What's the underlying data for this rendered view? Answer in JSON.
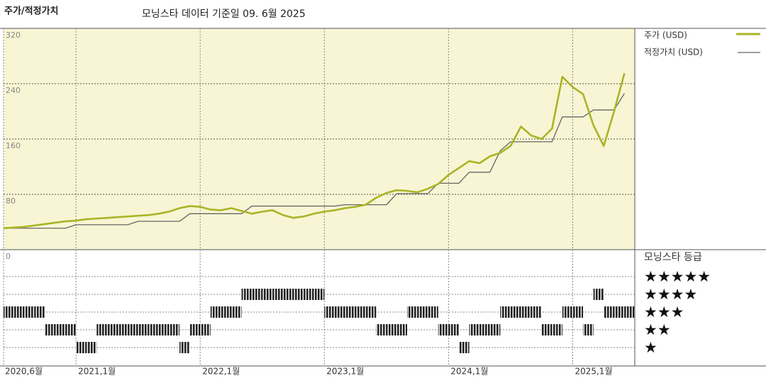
{
  "chart_data": {
    "type": "line",
    "title": "주가/적정가치",
    "subtitle": "모닝스타 데이터 기준일 09. 6월 2025",
    "x": [
      "2020-06",
      "2020-07",
      "2020-08",
      "2020-09",
      "2020-10",
      "2020-11",
      "2020-12",
      "2021-01",
      "2021-02",
      "2021-03",
      "2021-04",
      "2021-05",
      "2021-06",
      "2021-07",
      "2021-08",
      "2021-09",
      "2021-10",
      "2021-11",
      "2021-12",
      "2022-01",
      "2022-02",
      "2022-03",
      "2022-04",
      "2022-05",
      "2022-06",
      "2022-07",
      "2022-08",
      "2022-09",
      "2022-10",
      "2022-11",
      "2022-12",
      "2023-01",
      "2023-02",
      "2023-03",
      "2023-04",
      "2023-05",
      "2023-06",
      "2023-07",
      "2023-08",
      "2023-09",
      "2023-10",
      "2023-11",
      "2023-12",
      "2024-01",
      "2024-02",
      "2024-03",
      "2024-04",
      "2024-05",
      "2024-06",
      "2024-07",
      "2024-08",
      "2024-09",
      "2024-10",
      "2024-11",
      "2024-12",
      "2025-01",
      "2025-02",
      "2025-03",
      "2025-04",
      "2025-05",
      "2025-06"
    ],
    "series": [
      {
        "name": "주가 (USD)",
        "color": "#a9b426",
        "values": [
          31,
          32,
          33,
          35,
          37,
          39,
          41,
          42,
          44,
          45,
          46,
          47,
          48,
          49,
          50,
          52,
          55,
          60,
          63,
          62,
          58,
          57,
          60,
          56,
          52,
          55,
          57,
          50,
          46,
          48,
          52,
          55,
          57,
          60,
          62,
          65,
          75,
          82,
          86,
          85,
          83,
          88,
          95,
          108,
          118,
          128,
          125,
          135,
          140,
          150,
          178,
          165,
          160,
          175,
          250,
          235,
          225,
          180,
          150,
          200,
          255
        ]
      },
      {
        "name": "적정가치 (USD)",
        "color": "#666666",
        "values": [
          31,
          31,
          31,
          31,
          31,
          31,
          31,
          36,
          36,
          36,
          36,
          36,
          36,
          41,
          41,
          41,
          41,
          41,
          52,
          52,
          52,
          52,
          52,
          52,
          63,
          63,
          63,
          63,
          63,
          63,
          63,
          63,
          63,
          65,
          65,
          65,
          65,
          65,
          81,
          81,
          81,
          81,
          96,
          96,
          96,
          112,
          112,
          112,
          143,
          156,
          156,
          156,
          156,
          156,
          192,
          192,
          192,
          202,
          202,
          202,
          226
        ]
      }
    ],
    "xlim": [
      "2020-06",
      "2025-07"
    ],
    "xticks": [
      {
        "value": "2020-06",
        "label": "2020,6월"
      },
      {
        "value": "2021-01",
        "label": "2021,1월"
      },
      {
        "value": "2022-01",
        "label": "2022,1월"
      },
      {
        "value": "2023-01",
        "label": "2023,1월"
      },
      {
        "value": "2024-01",
        "label": "2024,1월"
      },
      {
        "value": "2025-01",
        "label": "2025,1월"
      }
    ],
    "ylim": [
      0,
      320
    ],
    "yticks": [
      0,
      80,
      160,
      240,
      320
    ],
    "grid": true,
    "rating": {
      "name": "모닝스타 등급",
      "levels": [
        "★★★★★",
        "★★★★",
        "★★★",
        "★★",
        "★"
      ],
      "scale": [
        5,
        4,
        3,
        2,
        1
      ],
      "values": [
        3,
        3,
        3,
        3,
        2,
        2,
        2,
        1,
        1,
        2,
        2,
        2,
        2,
        2,
        2,
        2,
        2,
        1,
        2,
        2,
        3,
        3,
        3,
        4,
        4,
        4,
        4,
        4,
        4,
        4,
        4,
        3,
        3,
        3,
        3,
        3,
        2,
        2,
        2,
        3,
        3,
        3,
        2,
        2,
        1,
        2,
        2,
        2,
        3,
        3,
        3,
        3,
        2,
        2,
        3,
        3,
        2,
        4,
        3,
        3,
        3
      ]
    }
  }
}
